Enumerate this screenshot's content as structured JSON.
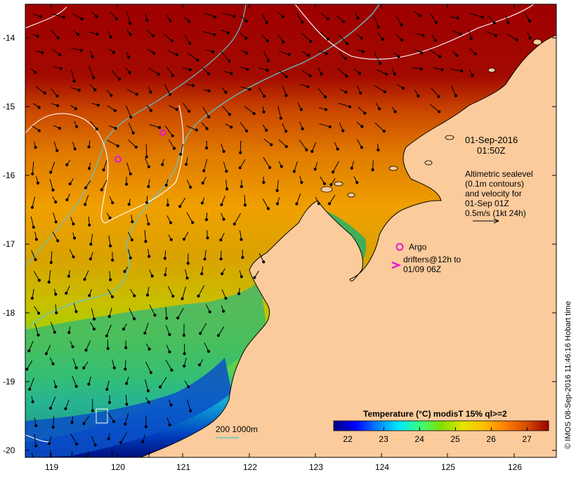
{
  "colors": {
    "land": "#fccb9c",
    "coast": "#000000",
    "contour_depth": "#5fc6c6",
    "sealevel_contour": "#ffffff",
    "argo": "#e21bd1",
    "drifter": "#e21bd1"
  },
  "axes": {
    "y_ticks": [
      "-14",
      "-15",
      "-16",
      "-17",
      "-18",
      "-19",
      "-20"
    ],
    "x_ticks": [
      "119",
      "120",
      "121",
      "122",
      "123",
      "124",
      "125",
      "126"
    ]
  },
  "annotations": {
    "date_line1": "01-Sep-2016",
    "date_line2": "01:50Z",
    "alt_line1": "Altimetric sealevel",
    "alt_line2": "(0.1m contours)",
    "alt_line3": "and velocity for",
    "alt_line4": "01-Sep 01Z",
    "alt_line5": "0.5m/s (1kt 24h)",
    "argo_label": "Argo",
    "drifters_line1": "drifters@12h to",
    "drifters_line2": "01/09 06Z",
    "bathy_label": "200 1000m"
  },
  "colorbar": {
    "title": "Temperature (°C) modisT 15% ql>=2",
    "ticks": [
      "22",
      "23",
      "24",
      "25",
      "26",
      "27"
    ],
    "range": [
      21.6,
      27.6
    ],
    "stops": [
      "#00007f",
      "#0000ff",
      "#007fff",
      "#00e5ff",
      "#39ff7f",
      "#7fdf00",
      "#e5e500",
      "#ffbf00",
      "#ff7f00",
      "#d44a00",
      "#9e0000"
    ]
  },
  "credit": "© IMOS 08-Sep-2016 11:46:16 Hobart time"
}
